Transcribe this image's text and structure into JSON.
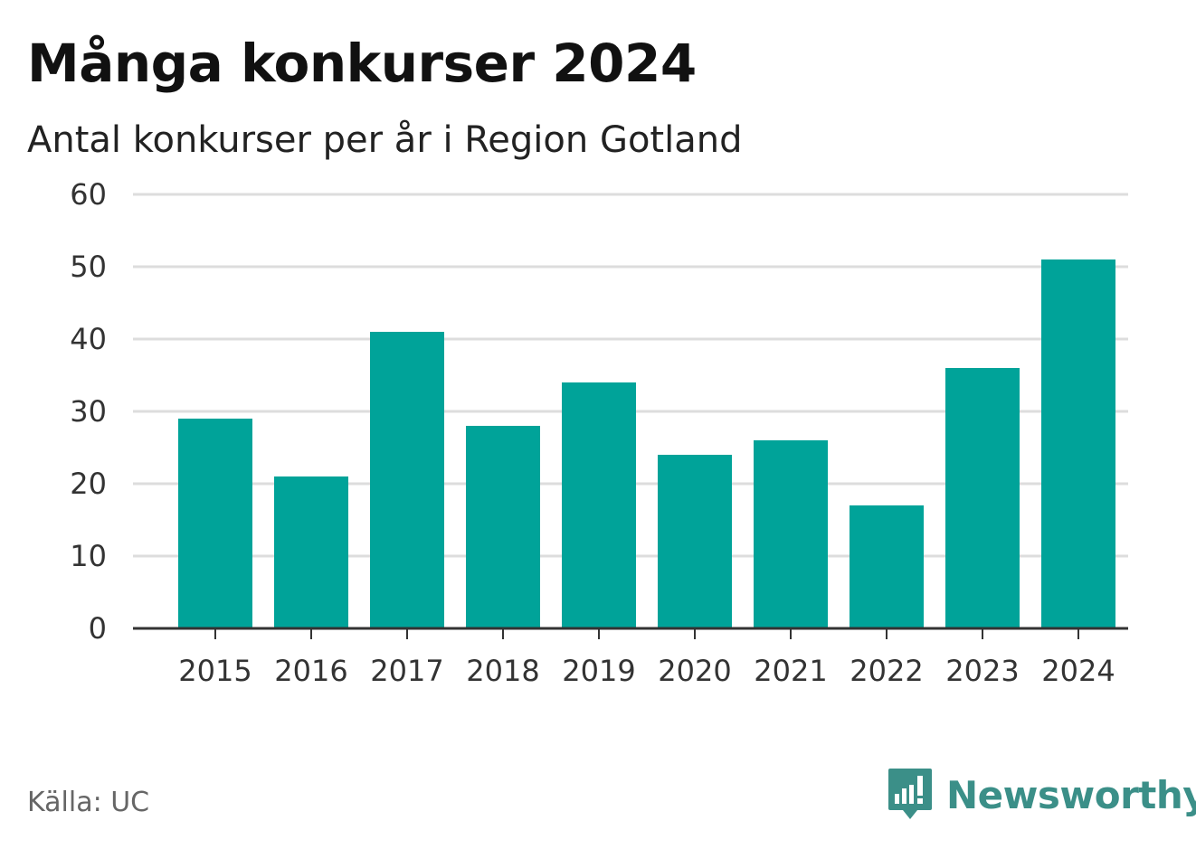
{
  "title": "Många konkurser 2024",
  "subtitle": "Antal konkurser per år i Region Gotland",
  "source": "Källa: UC",
  "brand": "Newsworthy",
  "colors": {
    "bar": "#00a399",
    "grid": "#dddddd",
    "axis": "#333333",
    "brand": "#3b8f88"
  },
  "chart_data": {
    "type": "bar",
    "categories": [
      "2015",
      "2016",
      "2017",
      "2018",
      "2019",
      "2020",
      "2021",
      "2022",
      "2023",
      "2024"
    ],
    "values": [
      29,
      21,
      41,
      28,
      34,
      24,
      26,
      17,
      36,
      51
    ],
    "ylim": [
      0,
      60
    ],
    "yticks": [
      0,
      10,
      20,
      30,
      40,
      50,
      60
    ],
    "grid": true
  }
}
